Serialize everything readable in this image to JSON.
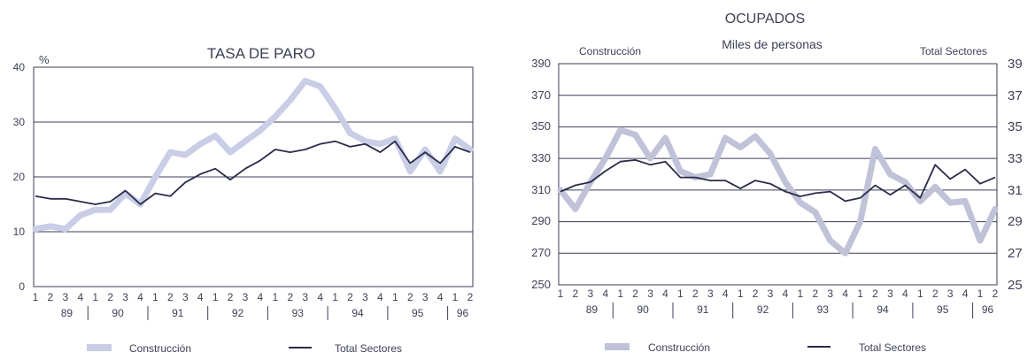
{
  "quarters": [
    "1",
    "2",
    "3",
    "4",
    "1",
    "2",
    "3",
    "4",
    "1",
    "2",
    "3",
    "4",
    "1",
    "2",
    "3",
    "4",
    "1",
    "2",
    "3",
    "4",
    "1",
    "2",
    "3",
    "4",
    "1",
    "2",
    "3",
    "4",
    "1",
    "2"
  ],
  "colors": {
    "construccion_left": "#c9cde6",
    "construccion_right": "#c0c2d8",
    "total": "#2a2c48",
    "grid": "#3a3c55",
    "text": "#3e4057"
  },
  "chart_data": [
    {
      "type": "line",
      "title": "TASA DE PARO",
      "unit_label": "%",
      "y_ticks": [
        "0",
        "10",
        "20",
        "30",
        "40"
      ],
      "ylim": [
        0,
        40
      ],
      "grid": true,
      "years": [
        "89",
        "90",
        "91",
        "92",
        "93",
        "94",
        "95",
        "96"
      ],
      "x_start": {
        "year": 1989,
        "quarter": 1
      },
      "legend": {
        "position": "bottom",
        "construccion": "Construcción",
        "total": "Total Sectores"
      },
      "series": [
        {
          "name": "Construcción",
          "values": [
            10.5,
            11,
            10.5,
            13,
            14,
            14,
            17,
            15,
            20,
            24.5,
            24,
            26,
            27.5,
            24.5,
            26.5,
            28.5,
            31,
            34,
            37.5,
            36.5,
            32.5,
            28,
            26.5,
            26,
            27,
            21,
            25,
            21,
            27,
            25
          ]
        },
        {
          "name": "Total Sectores",
          "values": [
            16.5,
            16,
            16,
            15.5,
            15,
            15.5,
            17.5,
            15,
            17,
            16.5,
            19,
            20.5,
            21.5,
            19.5,
            21.5,
            23,
            25,
            24.5,
            25,
            26,
            26.5,
            25.5,
            26,
            24.5,
            26.5,
            22.5,
            24.5,
            22.5,
            25.5,
            24.5
          ]
        }
      ]
    },
    {
      "type": "line",
      "title": "OCUPADOS",
      "subtitle": "Miles de personas",
      "left_axis_label": "Construcción",
      "right_axis_label": "Total Sectores",
      "y_ticks_left": [
        "250",
        "270",
        "290",
        "310",
        "330",
        "350",
        "370",
        "390"
      ],
      "y_ticks_right": [
        "25",
        "27",
        "29",
        "31",
        "33",
        "35",
        "37",
        "39"
      ],
      "ylim_left": [
        250,
        390
      ],
      "ylim_right": [
        25,
        39
      ],
      "grid": true,
      "years": [
        "89",
        "90",
        "91",
        "92",
        "93",
        "94",
        "95",
        "96"
      ],
      "x_start": {
        "year": 1989,
        "quarter": 1
      },
      "legend": {
        "position": "bottom",
        "construccion": "Construcción",
        "total": "Total Sectores"
      },
      "series": [
        {
          "name": "Construcción",
          "axis": "left",
          "values": [
            310,
            298,
            315,
            330,
            348,
            345,
            330,
            343,
            322,
            318,
            320,
            343,
            337,
            344,
            333,
            315,
            302,
            296,
            278,
            270,
            290,
            336,
            320,
            315,
            303,
            312,
            302,
            303,
            278,
            298
          ]
        },
        {
          "name": "Total Sectores",
          "axis": "right",
          "values": [
            30.9,
            31.3,
            31.5,
            32.2,
            32.8,
            32.9,
            32.6,
            32.8,
            31.8,
            31.8,
            31.6,
            31.6,
            31.1,
            31.6,
            31.4,
            30.9,
            30.6,
            30.8,
            30.9,
            30.3,
            30.5,
            31.3,
            30.7,
            31.3,
            30.5,
            32.6,
            31.7,
            32.3,
            31.4,
            31.8
          ]
        }
      ]
    }
  ]
}
